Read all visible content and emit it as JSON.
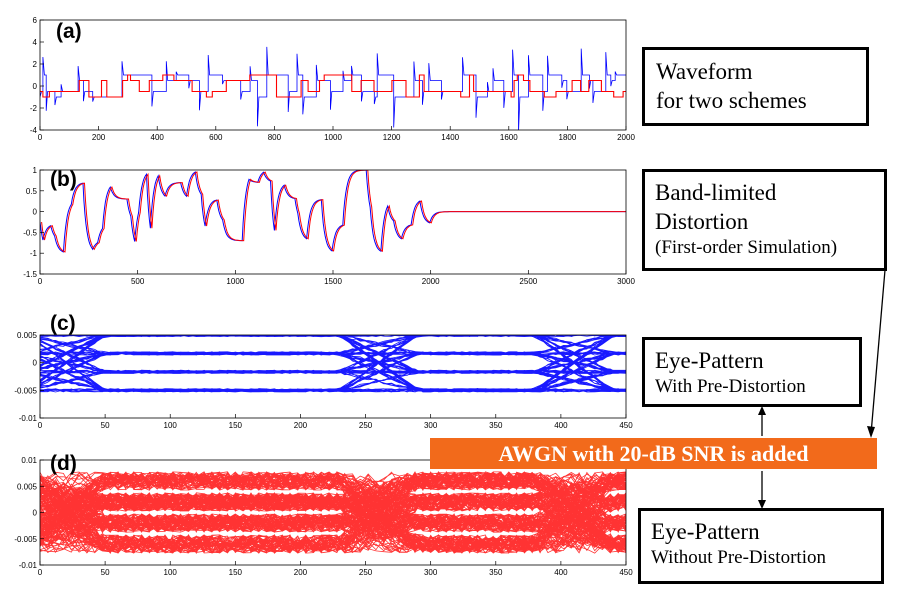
{
  "callouts": {
    "waveform": [
      "Waveform",
      "for two schemes"
    ],
    "distortion": [
      "Band-limited",
      "Distortion",
      "(First-order Simulation)"
    ],
    "eye_with": [
      "Eye-Pattern",
      "With Pre-Distortion"
    ],
    "eye_without": [
      "Eye-Pattern",
      "Without Pre-Distortion"
    ]
  },
  "awgn_label": "AWGN with 20-dB SNR is added",
  "colors": {
    "blue": "#0000ff",
    "red": "#ff0000",
    "orange": "#f26a1b"
  },
  "chart_data": [
    {
      "panel": "(a)",
      "type": "line",
      "xlim": [
        0,
        2000
      ],
      "ylim": [
        -4,
        6
      ],
      "xticks": [
        "0",
        "200",
        "400",
        "600",
        "800",
        "1000",
        "1200",
        "1400",
        "1600",
        "1800",
        "2000"
      ],
      "yticks": [
        "-4",
        "-2",
        "0",
        "2",
        "4",
        "6"
      ],
      "series": [
        {
          "color": "blue",
          "style": "step-with-overshoot"
        },
        {
          "color": "red",
          "style": "step"
        }
      ]
    },
    {
      "panel": "(b)",
      "type": "line",
      "xlim": [
        0,
        3000
      ],
      "ylim": [
        -1.5,
        1
      ],
      "xticks": [
        "0",
        "500",
        "1000",
        "1500",
        "2000",
        "2500",
        "3000"
      ],
      "yticks": [
        "-1.5",
        "-1",
        "-0.5",
        "0",
        "0.5",
        "1"
      ],
      "series": [
        {
          "color": "blue",
          "style": "smoothed"
        },
        {
          "color": "red",
          "style": "smoothed"
        }
      ]
    },
    {
      "panel": "(c)",
      "type": "line",
      "xlim": [
        0,
        450
      ],
      "ylim": [
        -0.01,
        0.005
      ],
      "xticks": [
        "0",
        "50",
        "100",
        "150",
        "200",
        "250",
        "300",
        "350",
        "400",
        "450"
      ],
      "yticks": [
        "-0.01",
        "-0.005",
        "0",
        "0.005"
      ],
      "series": [
        {
          "color": "blue",
          "style": "eye-diagram-open"
        }
      ]
    },
    {
      "panel": "(d)",
      "type": "line",
      "xlim": [
        0,
        450
      ],
      "ylim": [
        -0.01,
        0.01
      ],
      "xticks": [
        "0",
        "50",
        "100",
        "150",
        "200",
        "250",
        "300",
        "350",
        "400",
        "450"
      ],
      "yticks": [
        "-0.01",
        "-0.005",
        "0",
        "0.005",
        "0.01"
      ],
      "series": [
        {
          "color": "red",
          "style": "eye-diagram-closed"
        }
      ]
    }
  ]
}
